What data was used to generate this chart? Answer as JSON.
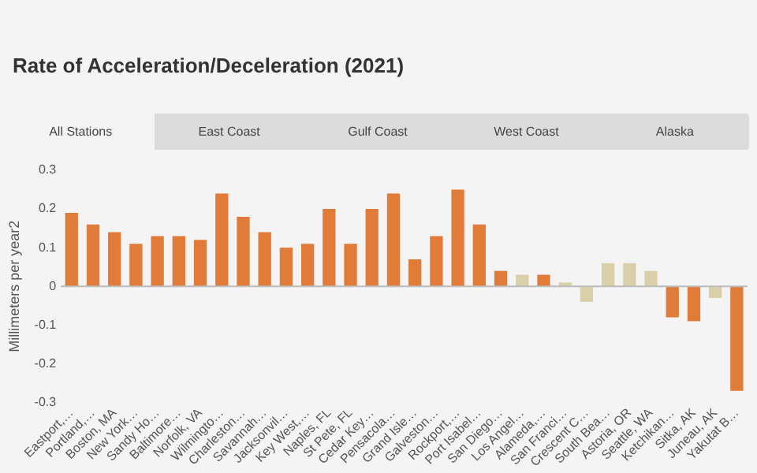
{
  "chart_data": {
    "type": "bar",
    "title": "Rate of Acceleration/Deceleration (2021)",
    "ylabel": "Millimeters per year2",
    "annotations": [
      "All Stations",
      "East Coast",
      "Gulf Coast",
      "West Coast",
      "Alaska"
    ],
    "categories": [
      "Eastport,…",
      "Portland,…",
      "Boston, MA",
      "New York…",
      "Sandy Ho…",
      "Baltimore…",
      "Norfolk, VA",
      "Wilmingto…",
      "Charleston…",
      "Savannah…",
      "Jacksonvil…",
      "Key West,…",
      "Naples, FL",
      "St Pete, FL",
      "Cedar Key…",
      "Pensacola…",
      "Grand Isle…",
      "Galveston…",
      "Rockport,…",
      "Port Isabel…",
      "San Diego…",
      "Los Angel…",
      "Alameda,…",
      "San Franci…",
      "Crescent C…",
      "South Bea…",
      "Astoria, OR",
      "Seattle, WA",
      "Ketchikan…",
      "Sitka, AK",
      "Juneau, AK",
      "Yakutat B…"
    ],
    "values": [
      0.19,
      0.16,
      0.14,
      0.11,
      0.13,
      0.13,
      0.12,
      0.24,
      0.18,
      0.14,
      0.1,
      0.11,
      0.2,
      0.11,
      0.2,
      0.24,
      0.07,
      0.13,
      0.25,
      0.16,
      0.04,
      0.03,
      0.03,
      0.01,
      -0.04,
      0.06,
      0.06,
      0.04,
      -0.08,
      -0.09,
      -0.03,
      -0.27
    ],
    "colors": [
      "#e07b39",
      "#e07b39",
      "#e07b39",
      "#e07b39",
      "#e07b39",
      "#e07b39",
      "#e07b39",
      "#e07b39",
      "#e07b39",
      "#e07b39",
      "#e07b39",
      "#e07b39",
      "#e07b39",
      "#e07b39",
      "#e07b39",
      "#e07b39",
      "#e07b39",
      "#e07b39",
      "#e07b39",
      "#e07b39",
      "#e07b39",
      "#d9cfa8",
      "#e07b39",
      "#d9cfa8",
      "#d9cfa8",
      "#d9cfa8",
      "#d9cfa8",
      "#d9cfa8",
      "#e07b39",
      "#e07b39",
      "#d9cfa8",
      "#e07b39"
    ],
    "ylim": [
      -0.3,
      0.3
    ],
    "yticks": [
      -0.3,
      -0.2,
      -0.1,
      0,
      0.1,
      0.2,
      0.3
    ],
    "ref_lines": [
      {
        "axis": "y",
        "value": 0,
        "color": "#bbbbbb"
      }
    ],
    "legend": false
  }
}
